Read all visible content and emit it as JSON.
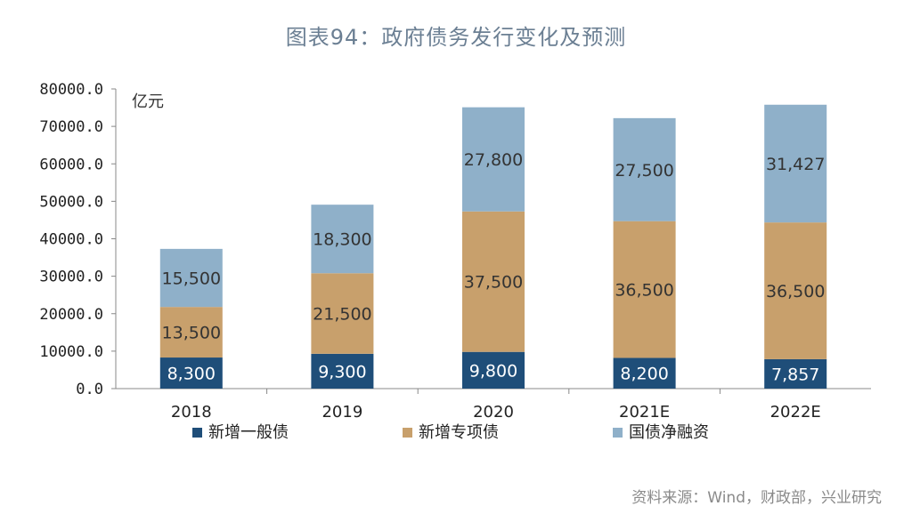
{
  "title": "图表94：政府债务发行变化及预测",
  "unit": "亿元",
  "source": "资料来源：Wind，财政部，兴业研究",
  "colors": {
    "general": "#1f4e79",
    "special": "#c8a06c",
    "treasury": "#8fb0c9"
  },
  "chart_data": {
    "type": "bar",
    "stacked": true,
    "categories": [
      "2018",
      "2019",
      "2020",
      "2021E",
      "2022E"
    ],
    "ylim": [
      0,
      80000
    ],
    "yticks": [
      "0.0",
      "10000.0",
      "20000.0",
      "30000.0",
      "40000.0",
      "50000.0",
      "60000.0",
      "70000.0",
      "80000.0"
    ],
    "ylabel": "亿元",
    "legend_position": "bottom",
    "series": [
      {
        "name": "新增一般债",
        "values": [
          8300,
          9300,
          9800,
          8200,
          7857
        ],
        "labels": [
          "8,300",
          "9,300",
          "9,800",
          "8,200",
          "7,857"
        ]
      },
      {
        "name": "新增专项债",
        "values": [
          13500,
          21500,
          37500,
          36500,
          36500
        ],
        "labels": [
          "13,500",
          "21,500",
          "37,500",
          "36,500",
          "36,500"
        ]
      },
      {
        "name": "国债净融资",
        "values": [
          15500,
          18300,
          27800,
          27500,
          31427
        ],
        "labels": [
          "15,500",
          "18,300",
          "27,800",
          "27,500",
          "31,427"
        ]
      }
    ]
  }
}
